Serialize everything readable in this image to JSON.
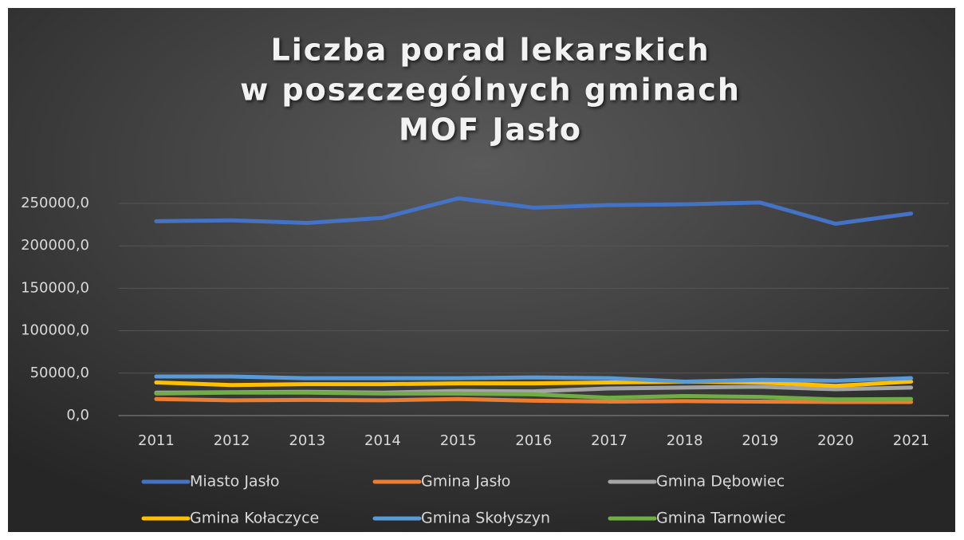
{
  "chart_data": {
    "type": "line",
    "title": [
      "Liczba porad lekarskich",
      "w poszczególnych gminach",
      "MOF Jasło"
    ],
    "categories": [
      "2011",
      "2012",
      "2013",
      "2014",
      "2015",
      "2016",
      "2017",
      "2018",
      "2019",
      "2020",
      "2021"
    ],
    "series": [
      {
        "name": "Miasto Jasło",
        "color": "#4472c4",
        "values": [
          229000,
          230000,
          227000,
          233000,
          256000,
          245000,
          248000,
          249000,
          251000,
          226000,
          238000
        ]
      },
      {
        "name": "Gmina Jasło",
        "color": "#ed7d31",
        "values": [
          19500,
          18000,
          18500,
          18000,
          19500,
          17500,
          16500,
          17000,
          16500,
          16000,
          16000
        ]
      },
      {
        "name": "Gmina Dębowiec",
        "color": "#a5a5a5",
        "values": [
          27000,
          27500,
          28000,
          27000,
          29000,
          28500,
          32000,
          33000,
          34000,
          31000,
          33000
        ]
      },
      {
        "name": "Gmina Kołaczyce",
        "color": "#ffc000",
        "values": [
          39000,
          36000,
          37000,
          37000,
          38000,
          38000,
          39000,
          40000,
          39000,
          35000,
          40000
        ]
      },
      {
        "name": "Gmina Skołyszyn",
        "color": "#5b9bd5",
        "values": [
          46000,
          46000,
          44000,
          44000,
          44000,
          45000,
          44000,
          40000,
          42000,
          41000,
          44000
        ]
      },
      {
        "name": "Gmina Tarnowiec",
        "color": "#70ad47",
        "values": [
          26000,
          27000,
          27000,
          26000,
          26000,
          25000,
          21000,
          23000,
          22000,
          19000,
          19500
        ]
      }
    ],
    "ylim": [
      0,
      250000
    ],
    "yticks": [
      {
        "value": 0,
        "label": "0,0"
      },
      {
        "value": 50000,
        "label": "50000,0"
      },
      {
        "value": 100000,
        "label": "100000,0"
      },
      {
        "value": 150000,
        "label": "150000,0"
      },
      {
        "value": 200000,
        "label": "200000,0"
      },
      {
        "value": 250000,
        "label": "250000,0"
      }
    ],
    "grid": true,
    "legend": "bottom"
  }
}
